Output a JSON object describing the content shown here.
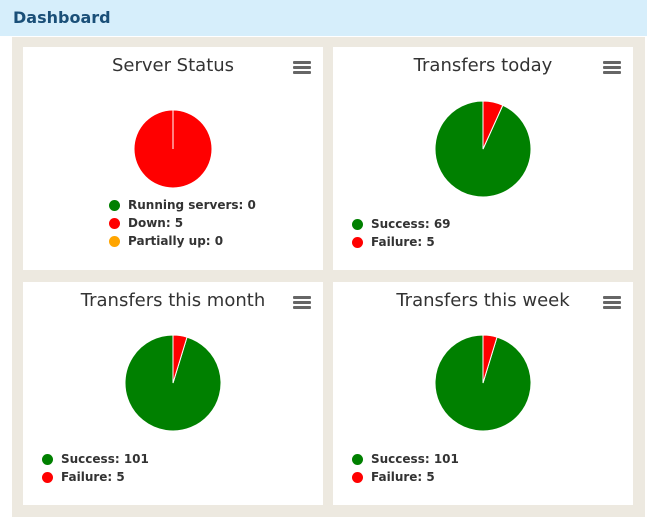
{
  "header": {
    "title": "Dashboard"
  },
  "colors": {
    "green": "#008000",
    "red": "#ff0000",
    "orange": "#ffa500"
  },
  "cards": [
    {
      "title": "Server Status",
      "menu_icon": "hamburger-menu-icon",
      "chart_data": {
        "type": "pie",
        "slices": [
          {
            "label": "Running servers",
            "value": 0,
            "color": "#008000"
          },
          {
            "label": "Down",
            "value": 5,
            "color": "#ff0000"
          },
          {
            "label": "Partially up",
            "value": 0,
            "color": "#ffa500"
          }
        ]
      },
      "legend": [
        {
          "text": "Running servers: 0",
          "color": "#008000"
        },
        {
          "text": "Down: 5",
          "color": "#ff0000"
        },
        {
          "text": "Partially up: 0",
          "color": "#ffa500"
        }
      ]
    },
    {
      "title": "Transfers today",
      "menu_icon": "hamburger-menu-icon",
      "chart_data": {
        "type": "pie",
        "slices": [
          {
            "label": "Success",
            "value": 69,
            "color": "#008000"
          },
          {
            "label": "Failure",
            "value": 5,
            "color": "#ff0000"
          }
        ]
      },
      "legend": [
        {
          "text": "Success: 69",
          "color": "#008000"
        },
        {
          "text": "Failure: 5",
          "color": "#ff0000"
        }
      ]
    },
    {
      "title": "Transfers this month",
      "menu_icon": "hamburger-menu-icon",
      "chart_data": {
        "type": "pie",
        "slices": [
          {
            "label": "Success",
            "value": 101,
            "color": "#008000"
          },
          {
            "label": "Failure",
            "value": 5,
            "color": "#ff0000"
          }
        ]
      },
      "legend": [
        {
          "text": "Success: 101",
          "color": "#008000"
        },
        {
          "text": "Failure: 5",
          "color": "#ff0000"
        }
      ]
    },
    {
      "title": "Transfers this week",
      "menu_icon": "hamburger-menu-icon",
      "chart_data": {
        "type": "pie",
        "slices": [
          {
            "label": "Success",
            "value": 101,
            "color": "#008000"
          },
          {
            "label": "Failure",
            "value": 5,
            "color": "#ff0000"
          }
        ]
      },
      "legend": [
        {
          "text": "Success: 101",
          "color": "#008000"
        },
        {
          "text": "Failure: 5",
          "color": "#ff0000"
        }
      ]
    }
  ]
}
